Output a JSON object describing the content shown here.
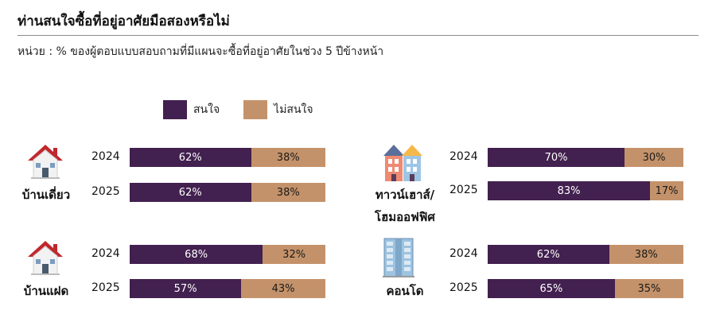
{
  "title": "ท่านสนใจซื้อที่อยู่อาศัยมือสองหรือไม่",
  "subtitle": "หน่วย : % ของผู้ตอบแบบสอบถามที่มีแผนจะซื้อที่อยู่อาศัยในช่วง 5 ปีข้างหน้า",
  "colors": {
    "interested": "#42204f",
    "not_interested": "#c4926a"
  },
  "legend": {
    "interested": "สนใจ",
    "not_interested": "ไม่สนใจ"
  },
  "icons": {
    "detached": "house-icon",
    "townhouse": "townhouse-icon",
    "twin": "house-icon",
    "condo": "condo-building-icon"
  },
  "chart_data": {
    "type": "bar",
    "orientation": "horizontal-stacked",
    "title": "ท่านสนใจซื้อที่อยู่อาศัยมือสองหรือไม่",
    "subtitle": "หน่วย : % ของผู้ตอบแบบสอบถามที่มีแผนจะซื้อที่อยู่อาศัยในช่วง 5 ปีข้างหน้า",
    "legend_position": "top",
    "series_names": [
      "สนใจ",
      "ไม่สนใจ"
    ],
    "panels": [
      {
        "label": "บ้านเดี่ยว",
        "rows": [
          {
            "year": "2024",
            "yes": 62,
            "no": 38
          },
          {
            "year": "2025",
            "yes": 62,
            "no": 38
          }
        ]
      },
      {
        "label": "ทาวน์เฮาส์/ โฮมออฟฟิศ",
        "label_lines": [
          "ทาวน์เฮาส์/",
          "โฮมออฟฟิศ"
        ],
        "rows": [
          {
            "year": "2024",
            "yes": 70,
            "no": 30
          },
          {
            "year": "2025",
            "yes": 83,
            "no": 17
          }
        ]
      },
      {
        "label": "บ้านแฝด",
        "rows": [
          {
            "year": "2024",
            "yes": 68,
            "no": 32
          },
          {
            "year": "2025",
            "yes": 57,
            "no": 43
          }
        ]
      },
      {
        "label": "คอนโด",
        "rows": [
          {
            "year": "2024",
            "yes": 62,
            "no": 38
          },
          {
            "year": "2025",
            "yes": 65,
            "no": 35
          }
        ]
      }
    ]
  }
}
